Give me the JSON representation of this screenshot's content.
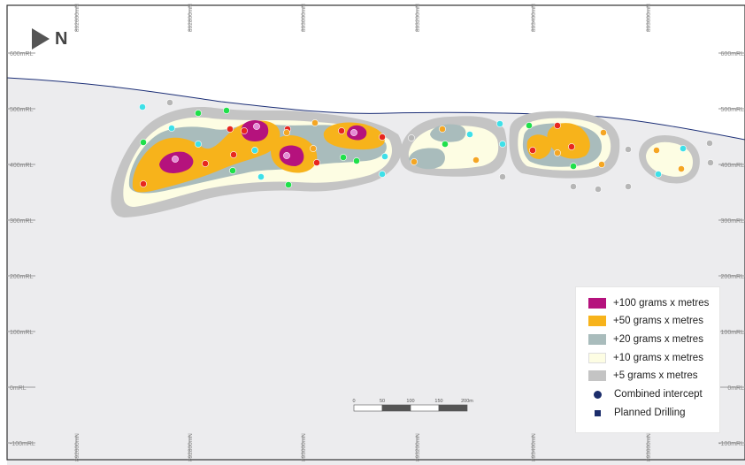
{
  "north_label": "N",
  "rl_labels": [
    "600mRL",
    "500mRL",
    "400mRL",
    "300mRL",
    "200mRL",
    "100mRL",
    "0mRL",
    "-100mRL"
  ],
  "mn_labels": [
    "892600mN",
    "892800mN",
    "893000mN",
    "893200mN",
    "893400mN",
    "893600mN"
  ],
  "scale_bar": {
    "ticks": [
      "0",
      "50",
      "100",
      "150",
      "200m"
    ]
  },
  "legend": {
    "items": [
      {
        "label": "+100 grams x metres",
        "color": "#b5127d"
      },
      {
        "label": "+50 grams x metres",
        "color": "#f7b31b"
      },
      {
        "label": "+20 grams x metres",
        "color": "#a9bcbc"
      },
      {
        "label": "+10 grams x metres",
        "color": "#fdfde3"
      },
      {
        "label": "+5 grams x metres",
        "color": "#c4c4c4"
      }
    ],
    "symbols": [
      {
        "label": "Combined intercept",
        "shape": "circle"
      },
      {
        "label": "Planned Drilling",
        "shape": "square"
      }
    ]
  },
  "colors": {
    "below_surface": "#ececee",
    "surface_line": "#1c2f77",
    "intercept_red": "#e8261e",
    "intercept_orange": "#f5a623",
    "intercept_green": "#1fe04a",
    "intercept_cyan": "#3ee0e8",
    "planned_grey": "#b6b6b6"
  }
}
